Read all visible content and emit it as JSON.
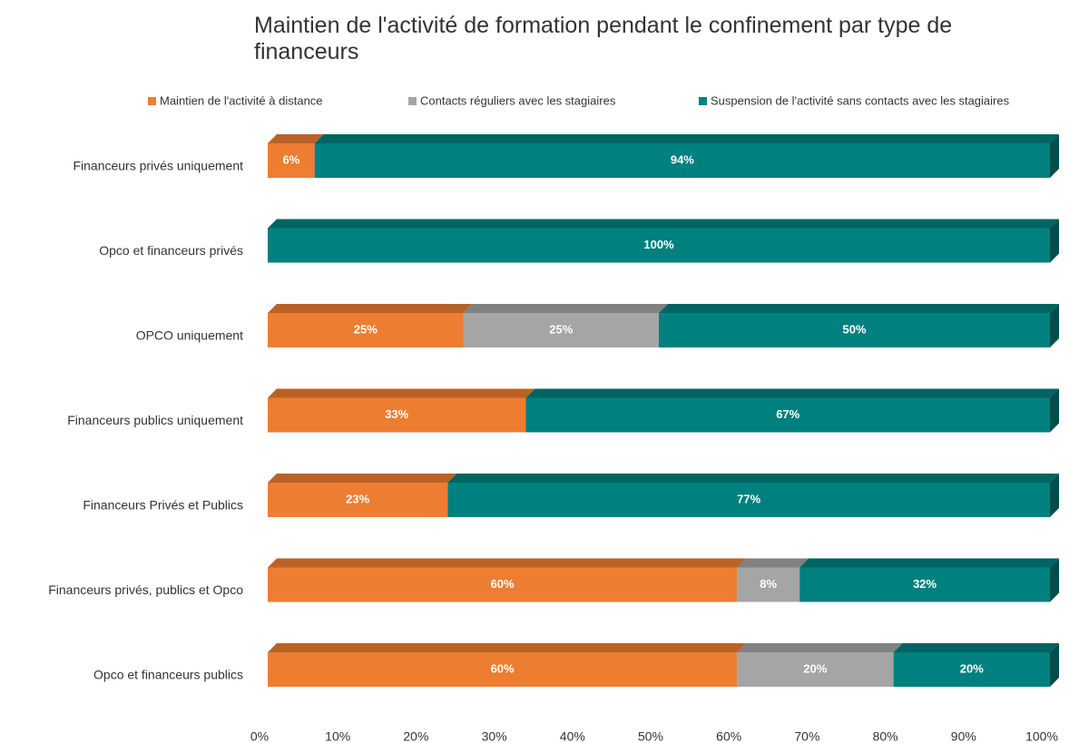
{
  "chart_data": {
    "type": "stacked_bar_horizontal",
    "title": "Maintien de l'activité de formation pendant le confinement par type de financeurs",
    "categories": [
      "Financeurs privés uniquement",
      "Opco et financeurs privés",
      "OPCO uniquement",
      "Financeurs publics uniquement",
      "Financeurs Privés et Publics",
      "Financeurs privés, publics et Opco",
      "Opco et financeurs publics"
    ],
    "series": [
      {
        "name": "Maintien de l'activité à distance",
        "color": "#ed7d31",
        "values": [
          6,
          0,
          25,
          33,
          23,
          60,
          60
        ],
        "value_labels": [
          "6%",
          null,
          "25%",
          "33%",
          "23%",
          "60%",
          "60%"
        ]
      },
      {
        "name": "Contacts réguliers avec les stagiaires",
        "color": "#a5a5a5",
        "values": [
          0,
          0,
          25,
          0,
          0,
          8,
          20
        ],
        "value_labels": [
          null,
          null,
          "25%",
          null,
          null,
          "8%",
          "20%"
        ]
      },
      {
        "name": "Suspension de l'activité sans contacts avec les stagiaires",
        "color": "#00807f",
        "values": [
          94,
          100,
          50,
          67,
          77,
          32,
          20
        ],
        "value_labels": [
          "94%",
          "100%",
          "50%",
          "67%",
          "77%",
          "32%",
          "20%"
        ]
      }
    ],
    "xlim": [
      0,
      100
    ],
    "xticks": [
      {
        "value": 0,
        "label": "0%"
      },
      {
        "value": 10,
        "label": "10%"
      },
      {
        "value": 20,
        "label": "20%"
      },
      {
        "value": 30,
        "label": "30%"
      },
      {
        "value": 40,
        "label": "40%"
      },
      {
        "value": 50,
        "label": "50%"
      },
      {
        "value": 60,
        "label": "60%"
      },
      {
        "value": 70,
        "label": "70%"
      },
      {
        "value": 80,
        "label": "80%"
      },
      {
        "value": 90,
        "label": "90%"
      },
      {
        "value": 100,
        "label": "100%"
      }
    ],
    "legend": "top"
  }
}
